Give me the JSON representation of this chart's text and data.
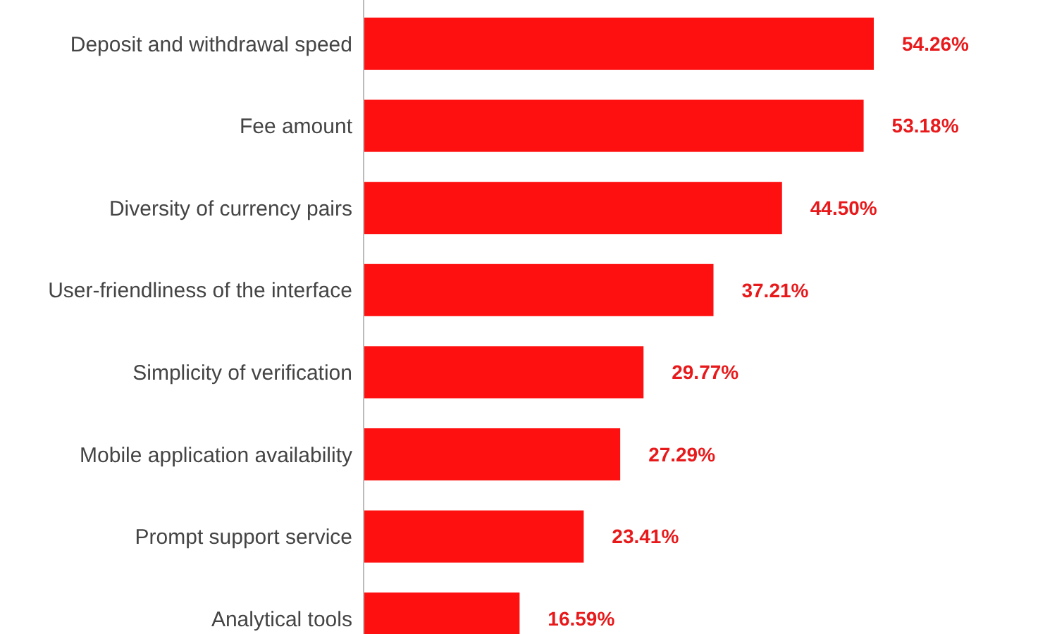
{
  "chart_data": {
    "type": "bar",
    "orientation": "horizontal",
    "categories": [
      "Deposit and withdrawal speed",
      "Fee amount",
      "Diversity of currency pairs",
      "User-friendliness of the interface",
      "Simplicity of verification",
      "Mobile application availability",
      "Prompt support service",
      "Analytical tools"
    ],
    "values": [
      54.26,
      53.18,
      44.5,
      37.21,
      29.77,
      27.29,
      23.41,
      16.59
    ],
    "value_labels": [
      "54.26%",
      "53.18%",
      "44.50%",
      "37.21%",
      "29.77%",
      "27.29%",
      "23.41%",
      "16.59%"
    ],
    "color": "#ff1010"
  }
}
